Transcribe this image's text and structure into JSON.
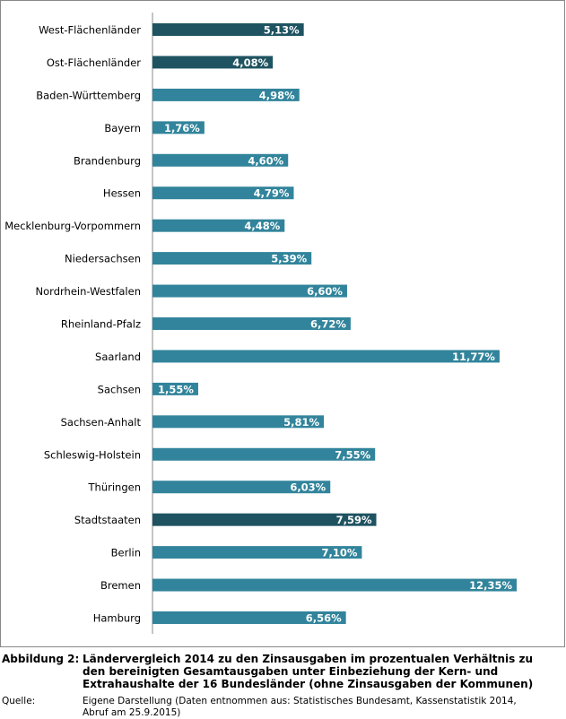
{
  "chart_data": {
    "type": "bar",
    "orientation": "horizontal",
    "categories": [
      "West-Flächenländer",
      "Ost-Flächenländer",
      "Baden-Württemberg",
      "Bayern",
      "Brandenburg",
      "Hessen",
      "Mecklenburg-Vorpommern",
      "Niedersachsen",
      "Nordrhein-Westfalen",
      "Rheinland-Pfalz",
      "Saarland",
      "Sachsen",
      "Sachsen-Anhalt",
      "Schleswig-Holstein",
      "Thüringen",
      "Stadtstaaten",
      "Berlin",
      "Bremen",
      "Hamburg"
    ],
    "values": [
      5.13,
      4.08,
      4.98,
      1.76,
      4.6,
      4.79,
      4.48,
      5.39,
      6.6,
      6.72,
      11.77,
      1.55,
      5.81,
      7.55,
      6.03,
      7.59,
      7.1,
      12.35,
      6.56
    ],
    "value_labels": [
      "5,13%",
      "4,08%",
      "4,98%",
      "1,76%",
      "4,60%",
      "4,79%",
      "4,48%",
      "5,39%",
      "6,60%",
      "6,72%",
      "11,77%",
      "1,55%",
      "5,81%",
      "7,55%",
      "6,03%",
      "7,59%",
      "7,10%",
      "12,35%",
      "6,56%"
    ],
    "colors": [
      "#1f5361",
      "#1f5361",
      "#31849b",
      "#31849b",
      "#31849b",
      "#31849b",
      "#31849b",
      "#31849b",
      "#31849b",
      "#31849b",
      "#31849b",
      "#31849b",
      "#31849b",
      "#31849b",
      "#31849b",
      "#1f5361",
      "#31849b",
      "#31849b",
      "#31849b"
    ]
  },
  "caption": {
    "label": "Abbildung 2:",
    "text": "Ländervergleich 2014 zu den Zinsausgaben im prozentualen Verhältnis zu den bereinigten Gesamtausgaben unter Einbeziehung der Kern- und Extrahaushalte der 16 Bundesländer (ohne Zinsausgaben der Kommunen)"
  },
  "source": {
    "label": "Quelle:",
    "text": "Eigene Darstellung (Daten entnommen aus: Statistisches Bundesamt, Kassenstatistik 2014, Abruf am 25.9.2015)"
  }
}
